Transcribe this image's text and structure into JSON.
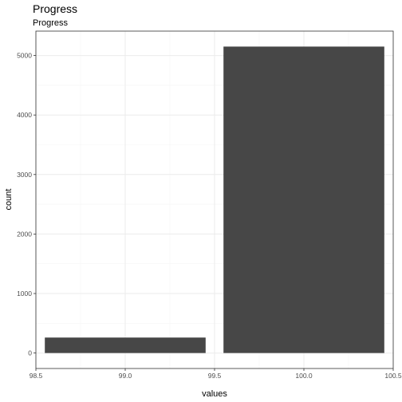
{
  "chart_data": {
    "type": "bar",
    "title": "Progress",
    "subtitle": "Progress",
    "xlabel": "values",
    "ylabel": "count",
    "bars": [
      {
        "xmin": 98.55,
        "xmax": 99.45,
        "value": 260
      },
      {
        "xmin": 99.55,
        "xmax": 100.45,
        "value": 5150
      }
    ],
    "xlim": [
      98.5,
      100.5
    ],
    "ylim": [
      -260,
      5410
    ],
    "x_ticks": [
      "98.5",
      "99.0",
      "99.5",
      "100.0",
      "100.5"
    ],
    "x_tick_values": [
      98.5,
      99.0,
      99.5,
      100.0,
      100.5
    ],
    "y_ticks": [
      "0",
      "1000",
      "2000",
      "3000",
      "4000",
      "5000"
    ],
    "y_tick_values": [
      0,
      1000,
      2000,
      3000,
      4000,
      5000
    ],
    "grid": true,
    "colors": {
      "bar": "#474747",
      "panel_border": "#333333",
      "grid_major": "#ebebeb",
      "grid_minor": "#f5f5f5",
      "tick_text": "#4d4d4d"
    }
  }
}
